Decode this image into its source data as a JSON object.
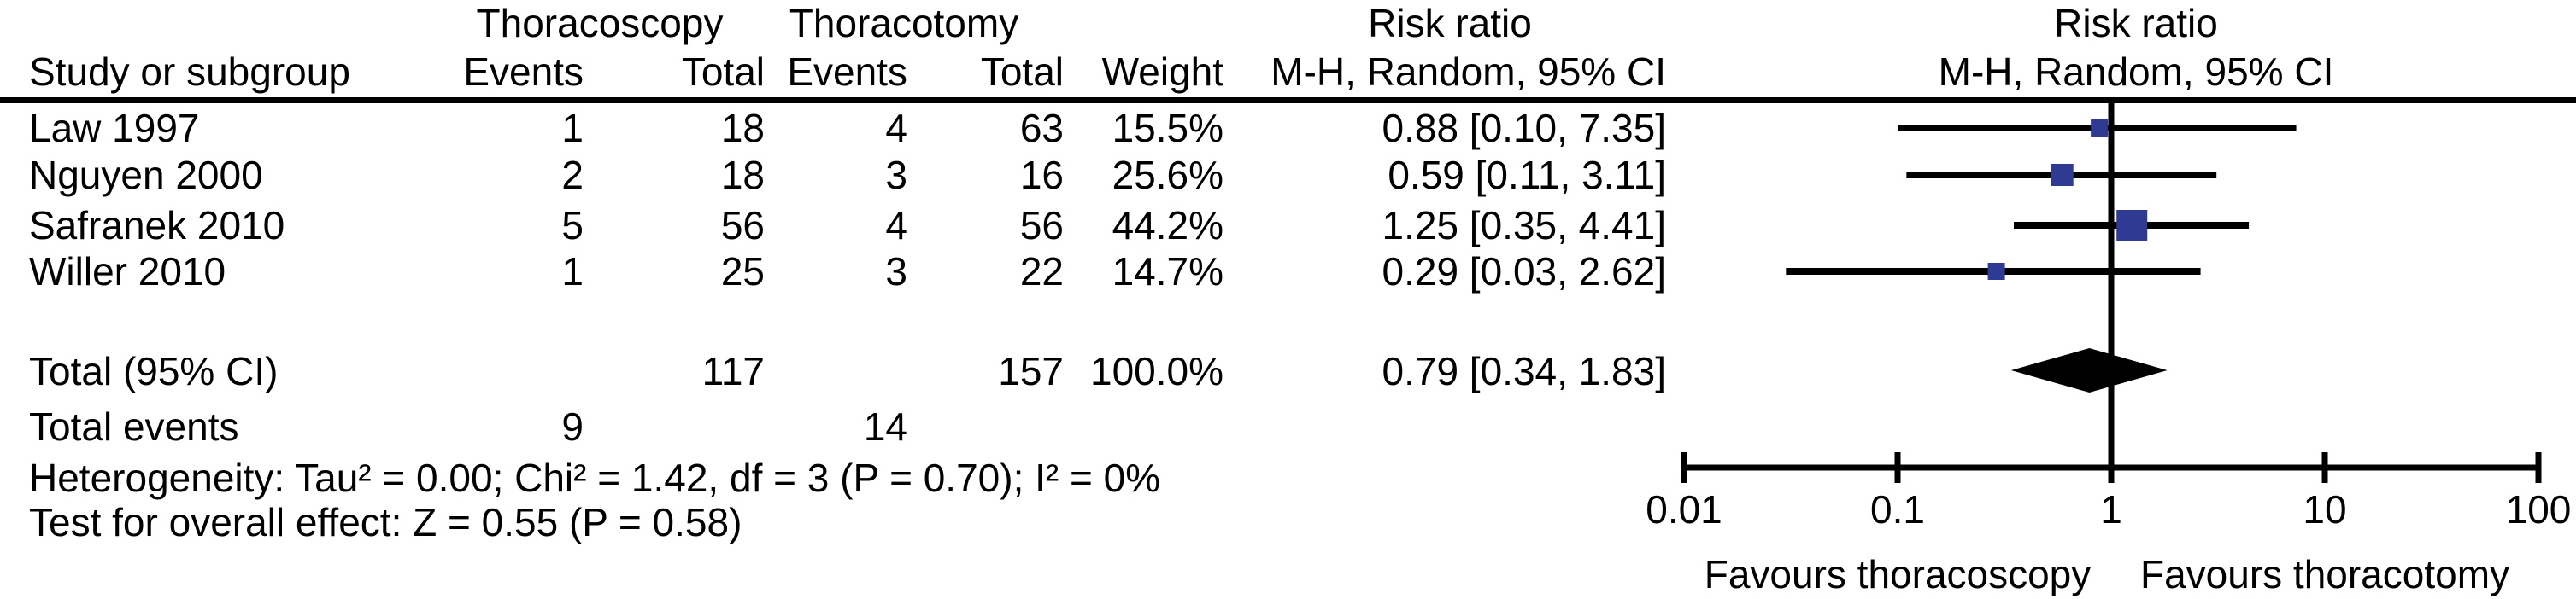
{
  "figure": {
    "background_color": "#ffffff",
    "text_color": "#000000"
  },
  "headers": {
    "group1": "Thoracoscopy",
    "group2": "Thoracotomy",
    "study": "Study or subgroup",
    "events": "Events",
    "total": "Total",
    "weight": "Weight",
    "rr_title": "Risk ratio",
    "rr_sub": "M-H, Random, 95% CI"
  },
  "chart_data": {
    "type": "forest",
    "effect_measure": "Risk ratio",
    "method": "M-H, Random, 95% CI",
    "x_scale": "log10",
    "x_range": [
      0.01,
      100
    ],
    "x_tick_values": [
      0.01,
      0.1,
      1,
      10,
      100
    ],
    "x_tick_labels": [
      "0.01",
      "0.1",
      "1",
      "10",
      "100"
    ],
    "null_line": 1,
    "marker_color": "#2f3a93",
    "line_color": "#000000",
    "studies": [
      {
        "label": "Law 1997",
        "events_thoracoscopy": "1",
        "total_thoracoscopy": "18",
        "events_thoracotomy": "4",
        "total_thoracotomy": "63",
        "weight_pct": 15.5,
        "weight_label": "15.5%",
        "rr": 0.88,
        "ci_low": 0.1,
        "ci_high": 7.35,
        "rr_ci_label": "0.88 [0.10, 7.35]"
      },
      {
        "label": "Nguyen 2000",
        "events_thoracoscopy": "2",
        "total_thoracoscopy": "18",
        "events_thoracotomy": "3",
        "total_thoracotomy": "16",
        "weight_pct": 25.6,
        "weight_label": "25.6%",
        "rr": 0.59,
        "ci_low": 0.11,
        "ci_high": 3.11,
        "rr_ci_label": "0.59 [0.11, 3.11]"
      },
      {
        "label": "Safranek 2010",
        "events_thoracoscopy": "5",
        "total_thoracoscopy": "56",
        "events_thoracotomy": "4",
        "total_thoracotomy": "56",
        "weight_pct": 44.2,
        "weight_label": "44.2%",
        "rr": 1.25,
        "ci_low": 0.35,
        "ci_high": 4.41,
        "rr_ci_label": "1.25 [0.35, 4.41]"
      },
      {
        "label": "Willer 2010",
        "events_thoracoscopy": "1",
        "total_thoracoscopy": "25",
        "events_thoracotomy": "3",
        "total_thoracotomy": "22",
        "weight_pct": 14.7,
        "weight_label": "14.7%",
        "rr": 0.29,
        "ci_low": 0.03,
        "ci_high": 2.62,
        "rr_ci_label": "0.29 [0.03, 2.62]"
      }
    ],
    "pooled": {
      "rr": 0.79,
      "ci_low": 0.34,
      "ci_high": 1.83
    },
    "favours_left": "Favours thoracoscopy",
    "favours_right": "Favours thoracotomy"
  },
  "summary": {
    "total_label": "Total (95% CI)",
    "total_thoracoscopy": "117",
    "total_thoracotomy": "157",
    "weight_label": "100.0%",
    "rr_ci_label": "0.79 [0.34, 1.83]",
    "total_events_label": "Total events",
    "total_events_thoracoscopy": "9",
    "total_events_thoracotomy": "14"
  },
  "footer": {
    "heterogeneity": "Heterogeneity: Tau² = 0.00; Chi² = 1.42, df = 3 (P = 0.70); I² = 0%",
    "overall_effect": "Test for overall effect: Z = 0.55 (P = 0.58)"
  }
}
